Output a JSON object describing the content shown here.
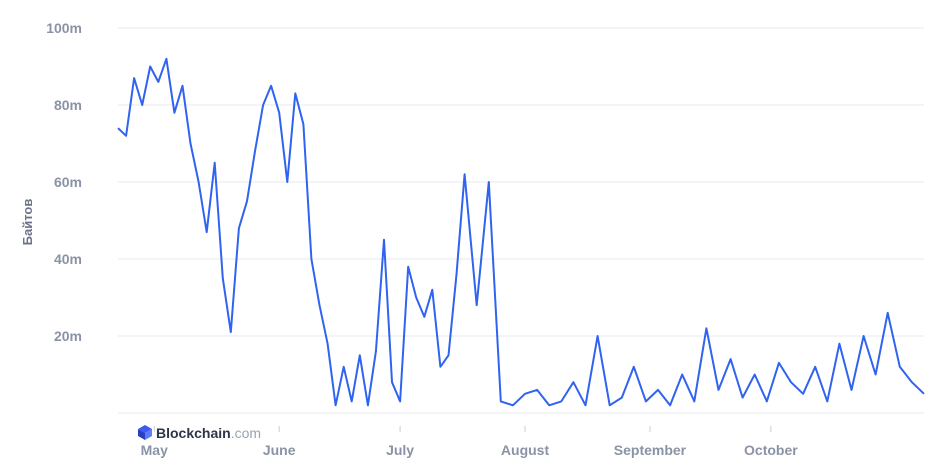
{
  "brand": {
    "name": "Blockchain",
    "suffix": ".com"
  },
  "chart_data": {
    "type": "line",
    "ylabel": "Байтов",
    "xlabel": "",
    "title": "",
    "ylim": [
      0,
      100
    ],
    "y_ticks": [
      {
        "value": 100,
        "label": "100m"
      },
      {
        "value": 80,
        "label": "80m"
      },
      {
        "value": 60,
        "label": "60m"
      },
      {
        "value": 40,
        "label": "40m"
      },
      {
        "value": 20,
        "label": "20m"
      }
    ],
    "x_ticks": [
      "May",
      "June",
      "July",
      "August",
      "September",
      "October"
    ],
    "x_range": [
      "2023-04-22",
      "2023-11-08"
    ],
    "x_tick_dates": [
      "2023-05-01",
      "2023-06-01",
      "2023-07-01",
      "2023-08-01",
      "2023-09-01",
      "2023-10-01"
    ],
    "line_color": "#2f63f0",
    "grid": true,
    "series": [
      {
        "x": [
          "2023-04-22",
          "2023-04-24",
          "2023-04-26",
          "2023-04-28",
          "2023-04-30",
          "2023-05-02",
          "2023-05-04",
          "2023-05-06",
          "2023-05-08",
          "2023-05-10",
          "2023-05-12",
          "2023-05-14",
          "2023-05-16",
          "2023-05-18",
          "2023-05-20",
          "2023-05-22",
          "2023-05-24",
          "2023-05-26",
          "2023-05-28",
          "2023-05-30",
          "2023-06-01",
          "2023-06-03",
          "2023-06-05",
          "2023-06-07",
          "2023-06-09",
          "2023-06-11",
          "2023-06-13",
          "2023-06-15",
          "2023-06-17",
          "2023-06-19",
          "2023-06-21",
          "2023-06-23",
          "2023-06-25",
          "2023-06-27",
          "2023-06-29",
          "2023-07-01",
          "2023-07-03",
          "2023-07-05",
          "2023-07-07",
          "2023-07-09",
          "2023-07-11",
          "2023-07-13",
          "2023-07-15",
          "2023-07-17",
          "2023-07-20",
          "2023-07-23",
          "2023-07-26",
          "2023-07-29",
          "2023-08-01",
          "2023-08-04",
          "2023-08-07",
          "2023-08-10",
          "2023-08-13",
          "2023-08-16",
          "2023-08-19",
          "2023-08-22",
          "2023-08-25",
          "2023-08-28",
          "2023-08-31",
          "2023-09-03",
          "2023-09-06",
          "2023-09-09",
          "2023-09-12",
          "2023-09-15",
          "2023-09-18",
          "2023-09-21",
          "2023-09-24",
          "2023-09-27",
          "2023-09-30",
          "2023-10-03",
          "2023-10-06",
          "2023-10-09",
          "2023-10-12",
          "2023-10-15",
          "2023-10-18",
          "2023-10-21",
          "2023-10-24",
          "2023-10-27",
          "2023-10-30",
          "2023-11-02",
          "2023-11-05",
          "2023-11-08"
        ],
        "values": [
          74,
          72,
          87,
          80,
          90,
          86,
          92,
          78,
          85,
          70,
          60,
          47,
          65,
          35,
          21,
          48,
          55,
          68,
          80,
          85,
          78,
          60,
          83,
          75,
          40,
          28,
          18,
          2,
          12,
          3,
          15,
          2,
          16,
          45,
          8,
          3,
          38,
          30,
          25,
          32,
          12,
          15,
          36,
          62,
          28,
          60,
          3,
          2,
          5,
          6,
          2,
          3,
          8,
          2,
          20,
          2,
          4,
          12,
          3,
          6,
          2,
          10,
          3,
          22,
          6,
          14,
          4,
          10,
          3,
          13,
          8,
          5,
          12,
          3,
          18,
          6,
          20,
          10,
          26,
          12,
          8,
          5
        ]
      }
    ]
  }
}
